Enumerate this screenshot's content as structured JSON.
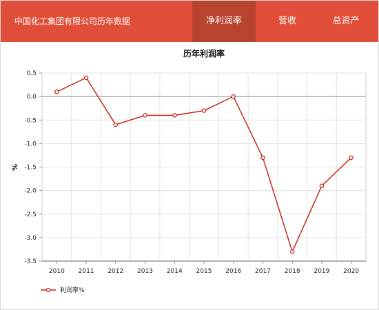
{
  "header": {
    "title": "中国化工集团有限公司历年数据",
    "tabs": [
      {
        "label": "净利润率",
        "active": true
      },
      {
        "label": "营收",
        "active": false
      },
      {
        "label": "总资产",
        "active": false
      }
    ]
  },
  "colors": {
    "header_bg": "#e04e39",
    "active_tab_bg": "#b8432f",
    "series": "#c8281e"
  },
  "chart_data": {
    "type": "line",
    "title": "历年利润率",
    "ylabel": "%",
    "xlabel": "",
    "categories": [
      "2010",
      "2011",
      "2012",
      "2013",
      "2014",
      "2015",
      "2016",
      "2017",
      "2018",
      "2019",
      "2020"
    ],
    "series": [
      {
        "name": "利润率%",
        "values": [
          0.1,
          0.4,
          -0.6,
          -0.4,
          -0.4,
          -0.3,
          0.0,
          -1.3,
          -3.3,
          -1.9,
          -1.3
        ]
      }
    ],
    "ylim": [
      -3.5,
      0.5
    ],
    "yticks": [
      "0.5",
      "0.0",
      "-0.5",
      "-1.0",
      "-1.5",
      "-2.0",
      "-2.5",
      "-3.0",
      "-3.5"
    ],
    "grid": true,
    "legend": "bottom-left"
  }
}
